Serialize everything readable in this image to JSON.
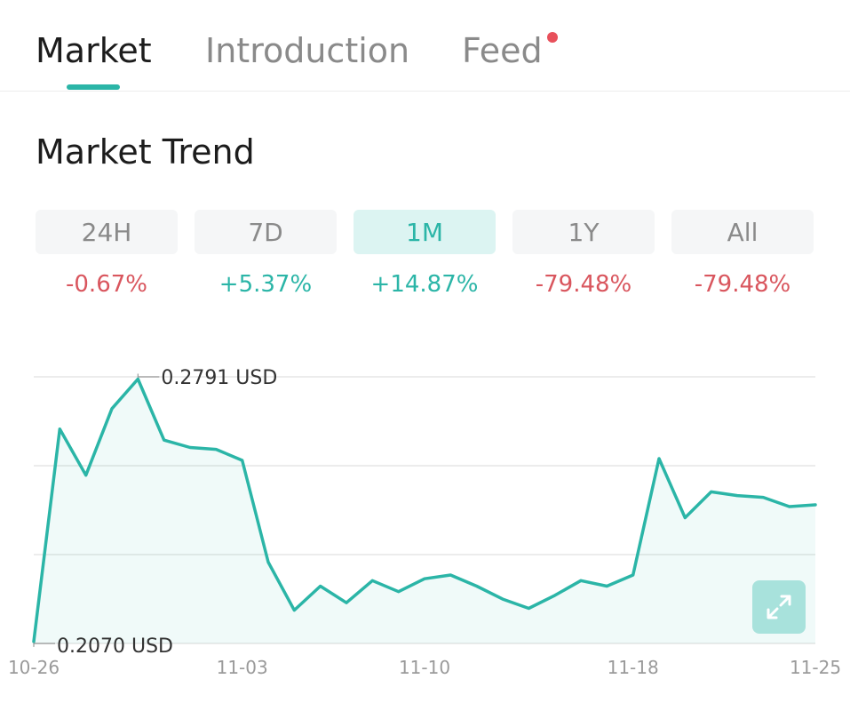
{
  "tabs": [
    {
      "label": "Market",
      "active": true
    },
    {
      "label": "Introduction",
      "active": false
    },
    {
      "label": "Feed",
      "active": false,
      "has_notification": true
    }
  ],
  "section_title": "Market Trend",
  "periods": [
    {
      "label": "24H",
      "change": "-0.67%",
      "direction": "down",
      "active": false
    },
    {
      "label": "7D",
      "change": "+5.37%",
      "direction": "up",
      "active": false
    },
    {
      "label": "1M",
      "change": "+14.87%",
      "direction": "up",
      "active": true
    },
    {
      "label": "1Y",
      "change": "-79.48%",
      "direction": "down",
      "active": false
    },
    {
      "label": "All",
      "change": "-79.48%",
      "direction": "down",
      "active": false
    }
  ],
  "colors": {
    "accent": "#2bb5a7",
    "up": "#2bb5a7",
    "down": "#d9565e",
    "notification": "#e8505b"
  },
  "expand_icon": "expand-icon",
  "chart_data": {
    "type": "line",
    "series": [
      {
        "x": [
          "10-26",
          "10-27",
          "10-28",
          "10-29",
          "10-30",
          "10-31",
          "11-01",
          "11-02",
          "11-03",
          "11-04",
          "11-05",
          "11-06",
          "11-07",
          "11-08",
          "11-09",
          "11-10",
          "11-11",
          "11-12",
          "11-13",
          "11-14",
          "11-15",
          "11-16",
          "11-17",
          "11-18",
          "11-19",
          "11-20",
          "11-21",
          "11-22",
          "11-23",
          "11-24",
          "11-25"
        ],
        "values": [
          0.2075,
          0.265,
          0.2525,
          0.2705,
          0.2785,
          0.262,
          0.26,
          0.2595,
          0.2565,
          0.229,
          0.216,
          0.2225,
          0.218,
          0.224,
          0.221,
          0.2245,
          0.2255,
          0.2225,
          0.219,
          0.2165,
          0.22,
          0.224,
          0.2225,
          0.2255,
          0.257,
          0.241,
          0.248,
          0.247,
          0.2465,
          0.244,
          0.2445
        ]
      }
    ],
    "xticks": [
      "10-26",
      "11-03",
      "11-10",
      "11-18",
      "11-25"
    ],
    "max_label": "0.2791 USD",
    "min_label": "0.2070 USD",
    "ylim": [
      0.207,
      0.2791
    ],
    "grid": true
  }
}
